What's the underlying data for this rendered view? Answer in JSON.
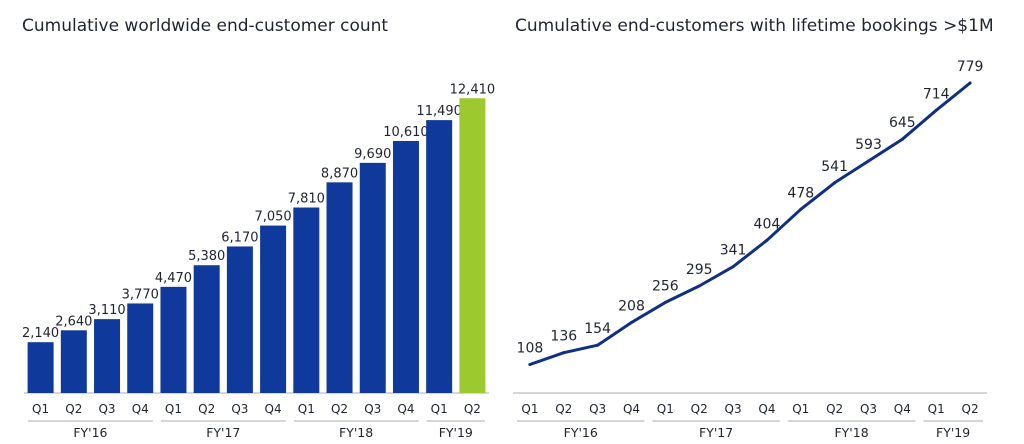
{
  "colors": {
    "bar": "#10399c",
    "highlight": "#9bc92e",
    "line": "#0f2f86",
    "axis": "#a9adb4"
  },
  "chart_data": [
    {
      "type": "bar",
      "title": "Cumulative worldwide end-customer count",
      "categories": [
        "Q1",
        "Q2",
        "Q3",
        "Q4",
        "Q1",
        "Q2",
        "Q3",
        "Q4",
        "Q1",
        "Q2",
        "Q3",
        "Q4",
        "Q1",
        "Q2"
      ],
      "groups": [
        "FY'16",
        "FY'17",
        "FY'18",
        "FY'19"
      ],
      "values": [
        2140,
        2640,
        3110,
        3770,
        4470,
        5380,
        6170,
        7050,
        7810,
        8870,
        9690,
        10610,
        11490,
        12410
      ],
      "labels": [
        "2,140",
        "2,640",
        "3,110",
        "3,770",
        "4,470",
        "5,380",
        "6,170",
        "7,050",
        "7,810",
        "8,870",
        "9,690",
        "10,610",
        "11,490",
        "12,410"
      ],
      "highlight_index": 13,
      "ylim": [
        0,
        13600
      ],
      "grid": false
    },
    {
      "type": "line",
      "title": "Cumulative end-customers with lifetime bookings >$1M",
      "categories": [
        "Q1",
        "Q2",
        "Q3",
        "Q4",
        "Q1",
        "Q2",
        "Q3",
        "Q4",
        "Q1",
        "Q2",
        "Q3",
        "Q4",
        "Q1",
        "Q2"
      ],
      "groups": [
        "FY'16",
        "FY'17",
        "FY'18",
        "FY'19"
      ],
      "values": [
        108,
        136,
        154,
        208,
        256,
        295,
        341,
        404,
        478,
        541,
        593,
        645,
        714,
        779
      ],
      "ylim": [
        40,
        810
      ],
      "grid": false
    }
  ]
}
